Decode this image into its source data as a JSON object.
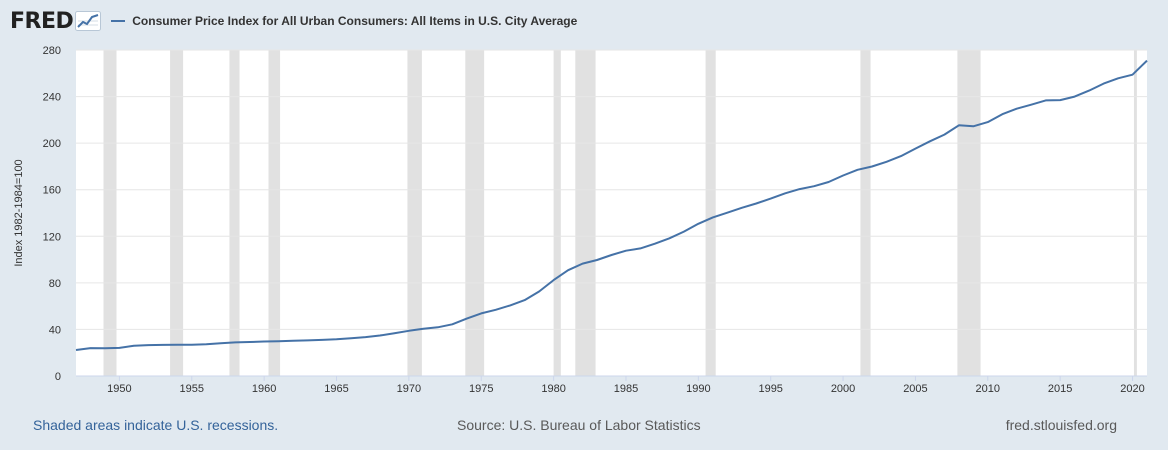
{
  "header": {
    "logo_text": "FRED",
    "logo_icon": "line-graph-icon",
    "series_label": "Consumer Price Index for All Urban Consumers: All Items in U.S. City Average"
  },
  "colors": {
    "background": "#e1e9f0",
    "plot_background": "#ffffff",
    "series_line": "#4572a7",
    "recession_shade": "#e1e1e1",
    "gridline": "#e6e6e6",
    "footer_link": "#34639a",
    "footer_text": "#595959"
  },
  "footer": {
    "recession_note": "Shaded areas indicate U.S. recessions.",
    "source": "Source: U.S. Bureau of Labor Statistics",
    "site": "fred.stlouisfed.org"
  },
  "chart_data": {
    "type": "line",
    "title": "",
    "xlabel": "",
    "ylabel": "Index 1982-1984=100",
    "xlim": [
      1947,
      2021
    ],
    "ylim": [
      0,
      280
    ],
    "x_ticks": [
      1950,
      1955,
      1960,
      1965,
      1970,
      1975,
      1980,
      1985,
      1990,
      1995,
      2000,
      2005,
      2010,
      2015,
      2020
    ],
    "x_tick_labels": [
      "1950",
      "1955",
      "1960",
      "1965",
      "1970",
      "1975",
      "1980",
      "1985",
      "1990",
      "1995",
      "2000",
      "2005",
      "2010",
      "2015",
      "2020"
    ],
    "y_ticks": [
      0,
      40,
      80,
      120,
      160,
      200,
      240,
      280
    ],
    "y_tick_labels": [
      "0",
      "40",
      "80",
      "120",
      "160",
      "200",
      "240",
      "280"
    ],
    "grid": "horizontal",
    "legend": "top-left",
    "recessions": [
      [
        1948.9,
        1949.8
      ],
      [
        1953.5,
        1954.4
      ],
      [
        1957.6,
        1958.3
      ],
      [
        1960.3,
        1961.1
      ],
      [
        1969.9,
        1970.9
      ],
      [
        1973.9,
        1975.2
      ],
      [
        1980.0,
        1980.5
      ],
      [
        1981.5,
        1982.9
      ],
      [
        1990.5,
        1991.2
      ],
      [
        2001.2,
        2001.9
      ],
      [
        2007.9,
        2009.5
      ],
      [
        2020.1,
        2020.3
      ]
    ],
    "series": [
      {
        "name": "Consumer Price Index for All Urban Consumers: All Items in U.S. City Average",
        "x": [
          1947,
          1948,
          1949,
          1950,
          1951,
          1952,
          1953,
          1954,
          1955,
          1956,
          1957,
          1958,
          1959,
          1960,
          1961,
          1962,
          1963,
          1964,
          1965,
          1966,
          1967,
          1968,
          1969,
          1970,
          1971,
          1972,
          1973,
          1974,
          1975,
          1976,
          1977,
          1978,
          1979,
          1980,
          1981,
          1982,
          1983,
          1984,
          1985,
          1986,
          1987,
          1988,
          1989,
          1990,
          1991,
          1992,
          1993,
          1994,
          1995,
          1996,
          1997,
          1998,
          1999,
          2000,
          2001,
          2002,
          2003,
          2004,
          2005,
          2006,
          2007,
          2008,
          2009,
          2010,
          2011,
          2012,
          2013,
          2014,
          2015,
          2016,
          2017,
          2018,
          2019,
          2020,
          2021
        ],
        "values": [
          22.3,
          24.0,
          23.8,
          24.1,
          26.0,
          26.5,
          26.7,
          26.9,
          26.8,
          27.2,
          28.1,
          28.9,
          29.2,
          29.6,
          29.9,
          30.3,
          30.6,
          31.0,
          31.5,
          32.5,
          33.4,
          34.8,
          36.7,
          38.8,
          40.5,
          41.8,
          44.4,
          49.3,
          53.8,
          56.9,
          60.6,
          65.2,
          72.6,
          82.4,
          90.9,
          96.5,
          99.6,
          103.9,
          107.6,
          109.6,
          113.6,
          118.3,
          124.0,
          130.7,
          136.2,
          140.3,
          144.5,
          148.2,
          152.4,
          156.9,
          160.5,
          163.0,
          166.6,
          172.2,
          177.1,
          179.9,
          184.0,
          188.9,
          195.3,
          201.6,
          207.3,
          215.3,
          214.5,
          218.1,
          224.9,
          229.6,
          233.0,
          236.7,
          237.0,
          240.0,
          245.1,
          251.1,
          255.7,
          258.8,
          270.9
        ]
      }
    ]
  }
}
